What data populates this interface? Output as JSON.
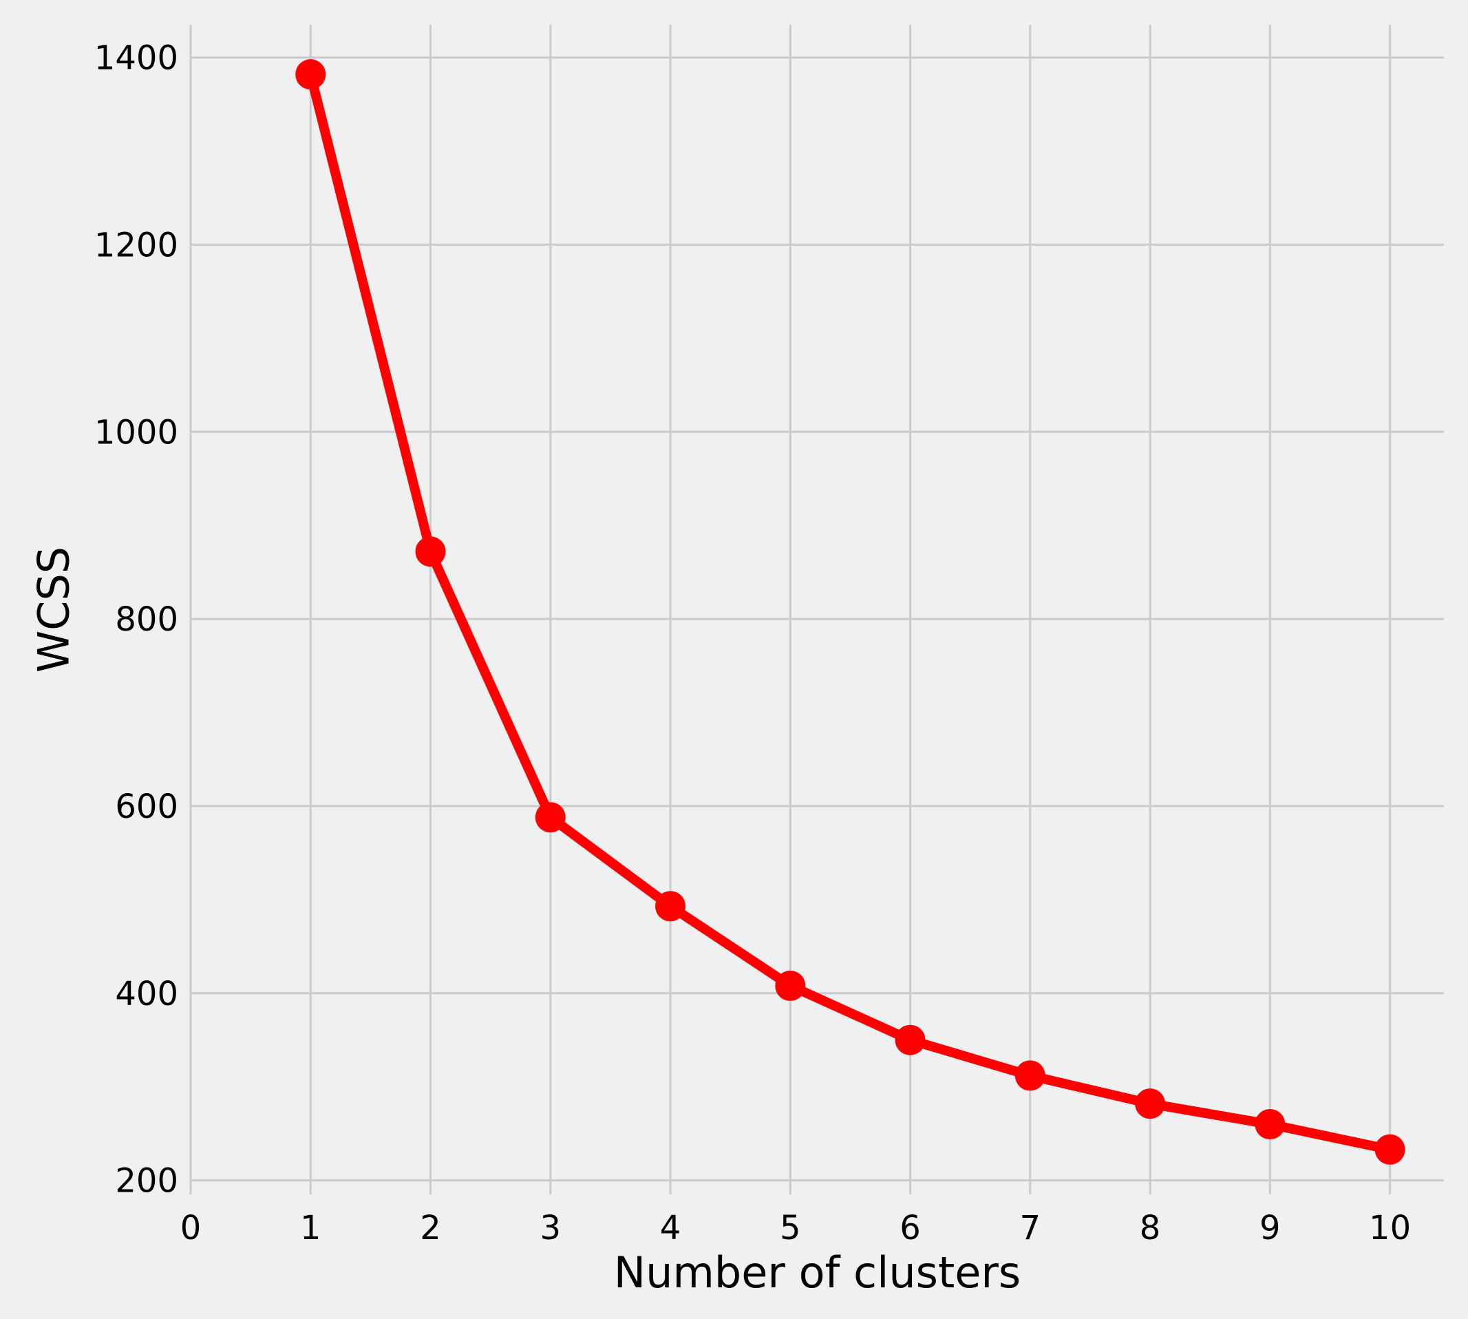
{
  "chart_data": {
    "type": "line",
    "title": "",
    "xlabel": "Number of clusters",
    "ylabel": "WCSS",
    "xlim": [
      0,
      10.45
    ],
    "ylim": [
      185,
      1435
    ],
    "x_ticks": [
      0,
      1,
      2,
      3,
      4,
      5,
      6,
      7,
      8,
      9,
      10
    ],
    "y_ticks": [
      200,
      400,
      600,
      800,
      1000,
      1200,
      1400
    ],
    "grid": true,
    "legend": "none",
    "series": [
      {
        "x": [
          1,
          2,
          3,
          4,
          5,
          6,
          7,
          8,
          9,
          10
        ],
        "values": [
          1382,
          872,
          588,
          493,
          408,
          350,
          312,
          282,
          260,
          233
        ],
        "color": "#ff0000",
        "marker": "circle"
      }
    ]
  }
}
